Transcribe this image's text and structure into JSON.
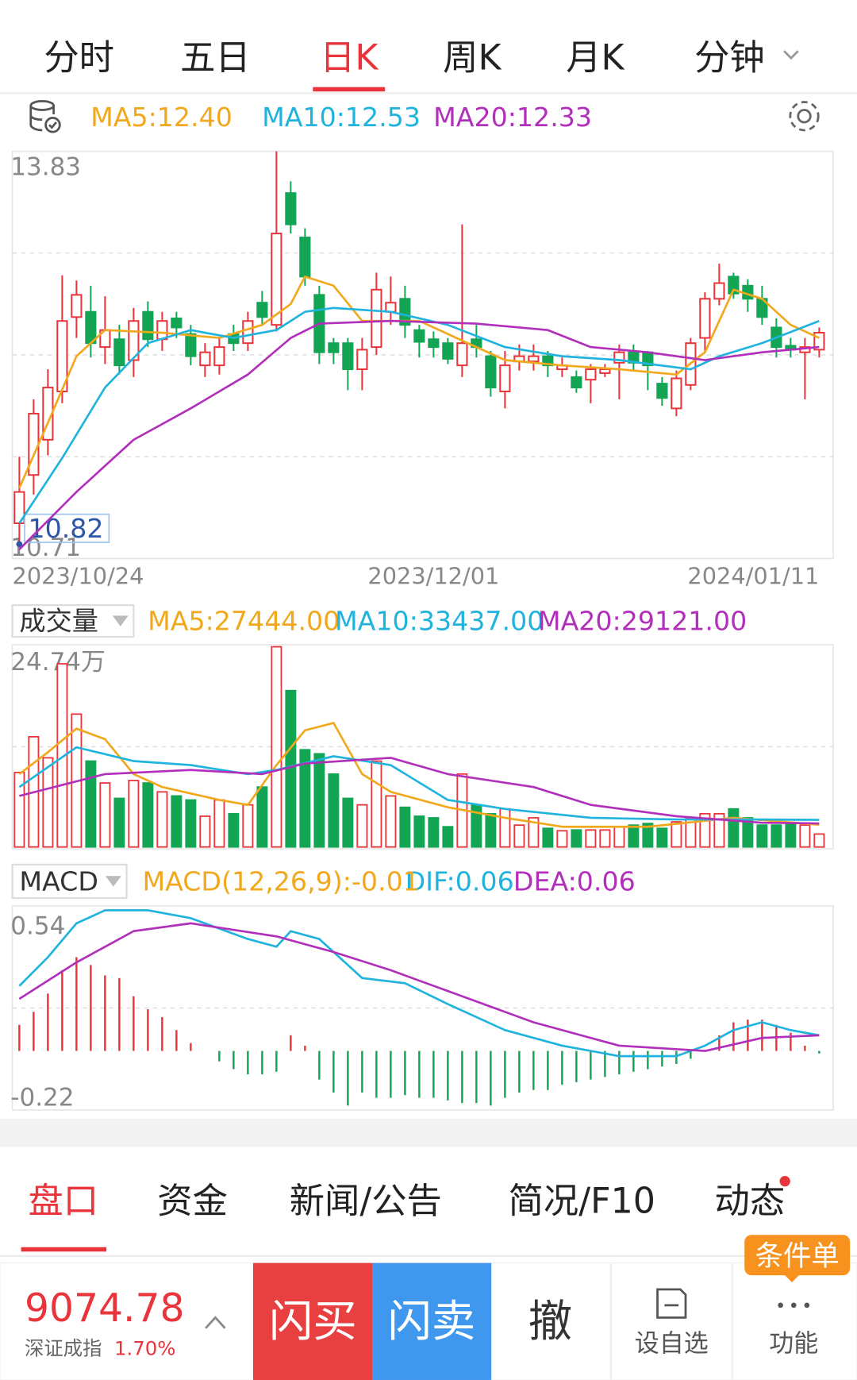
{
  "tabs": {
    "items": [
      "分时",
      "五日",
      "日K",
      "周K",
      "月K",
      "分钟"
    ],
    "active": 2
  },
  "chart_data": [
    {
      "type": "candlestick",
      "up_color": "#e8343a",
      "down_color": "#13a553",
      "open": [
        10.98,
        11.35,
        11.62,
        11.99,
        12.56,
        12.6,
        12.33,
        12.39,
        12.23,
        12.6,
        12.39,
        12.55,
        12.43,
        12.19,
        12.19,
        12.43,
        12.36,
        12.67,
        12.5,
        13.51,
        13.17,
        12.73,
        12.36,
        12.36,
        12.16,
        12.33,
        12.6,
        12.7,
        12.46,
        12.39,
        12.36,
        12.19,
        12.39,
        12.26,
        11.99,
        12.22,
        12.22,
        12.26,
        12.16,
        12.1,
        12.08,
        12.13,
        12.21,
        12.29,
        12.29,
        12.05,
        11.86,
        12.04,
        12.4,
        12.7,
        12.87,
        12.8,
        12.7,
        12.48,
        12.34,
        12.29,
        12.31
      ],
      "high": [
        11.49,
        11.93,
        12.16,
        12.88,
        12.84,
        12.8,
        12.72,
        12.5,
        12.63,
        12.68,
        12.6,
        12.6,
        12.5,
        12.36,
        12.4,
        12.5,
        12.6,
        12.76,
        13.83,
        13.6,
        13.24,
        12.8,
        12.4,
        12.4,
        12.4,
        12.9,
        12.87,
        12.8,
        12.5,
        12.45,
        12.4,
        13.27,
        12.5,
        12.3,
        12.3,
        12.35,
        12.35,
        12.3,
        12.25,
        12.15,
        12.2,
        12.2,
        12.35,
        12.35,
        12.3,
        12.1,
        12.15,
        12.4,
        12.75,
        12.97,
        12.9,
        12.85,
        12.8,
        12.55,
        12.4,
        12.4,
        12.48
      ],
      "low": [
        10.82,
        11.2,
        11.5,
        11.9,
        12.4,
        12.25,
        12.2,
        12.12,
        12.1,
        12.33,
        12.3,
        12.4,
        12.19,
        12.1,
        12.12,
        12.3,
        12.3,
        12.5,
        12.45,
        13.2,
        12.8,
        12.2,
        12.2,
        12.0,
        12.0,
        12.27,
        12.5,
        12.4,
        12.25,
        12.25,
        12.2,
        12.1,
        12.25,
        11.95,
        11.86,
        12.15,
        12.15,
        12.1,
        12.1,
        11.98,
        11.9,
        12.1,
        11.93,
        12.15,
        12.0,
        11.88,
        11.8,
        12.0,
        12.3,
        12.65,
        12.7,
        12.6,
        12.5,
        12.25,
        12.25,
        11.93,
        12.25
      ],
      "close": [
        11.22,
        11.82,
        12.02,
        12.53,
        12.73,
        12.36,
        12.46,
        12.19,
        12.53,
        12.39,
        12.53,
        12.48,
        12.26,
        12.29,
        12.33,
        12.36,
        12.53,
        12.56,
        13.2,
        13.27,
        12.87,
        12.29,
        12.29,
        12.16,
        12.31,
        12.77,
        12.67,
        12.5,
        12.37,
        12.33,
        12.24,
        12.36,
        12.33,
        12.02,
        12.19,
        12.26,
        12.26,
        12.19,
        12.19,
        12.02,
        12.16,
        12.16,
        12.29,
        12.21,
        12.19,
        11.94,
        12.09,
        12.36,
        12.7,
        12.82,
        12.74,
        12.7,
        12.56,
        12.33,
        12.31,
        12.33,
        12.44
      ],
      "xlim": [
        0,
        56
      ],
      "xticks": [
        {
          "value": 0,
          "label": "2023/10/24"
        },
        {
          "value": 29,
          "label": "2023/12/01"
        },
        {
          "value": 56,
          "label": "2024/01/11"
        }
      ],
      "ylim": [
        10.71,
        13.83
      ],
      "yticks": [
        13.83,
        10.71
      ],
      "grid_divisions": 4,
      "min_marker": {
        "x": 0,
        "value": 10.82
      },
      "series": [
        {
          "name": "MA5:12.40",
          "color": "#f2a81d",
          "x": [
            0,
            2,
            4,
            6,
            10,
            14,
            17,
            19,
            20,
            22,
            24,
            26,
            28,
            32,
            34,
            38,
            42,
            46,
            48,
            50,
            52,
            54,
            56
          ],
          "values": [
            11.25,
            11.75,
            12.26,
            12.46,
            12.44,
            12.4,
            12.5,
            12.66,
            12.87,
            12.8,
            12.53,
            12.53,
            12.53,
            12.33,
            12.23,
            12.19,
            12.16,
            12.12,
            12.29,
            12.77,
            12.7,
            12.5,
            12.4
          ]
        },
        {
          "name": "MA10:12.53",
          "color": "#1fb3dd",
          "x": [
            0,
            3,
            6,
            9,
            12,
            15,
            18,
            20,
            22,
            26,
            30,
            34,
            38,
            42,
            47,
            49,
            52,
            56
          ],
          "values": [
            10.98,
            11.48,
            12.02,
            12.36,
            12.46,
            12.4,
            12.46,
            12.6,
            12.63,
            12.6,
            12.5,
            12.33,
            12.26,
            12.23,
            12.16,
            12.26,
            12.36,
            12.53
          ]
        },
        {
          "name": "MA20:12.33",
          "color": "#b12fbb",
          "x": [
            0,
            4,
            8,
            12,
            16,
            19,
            21,
            26,
            32,
            37,
            40,
            44,
            48,
            52,
            56
          ],
          "values": [
            10.78,
            11.22,
            11.62,
            11.86,
            12.12,
            12.4,
            12.51,
            12.53,
            12.51,
            12.46,
            12.33,
            12.29,
            12.23,
            12.29,
            12.33
          ]
        }
      ]
    },
    {
      "type": "bar",
      "indicator": "成交量",
      "values": [
        92000,
        136000,
        110000,
        226000,
        164000,
        106000,
        79000,
        60000,
        82000,
        79000,
        68000,
        63000,
        58000,
        38000,
        58000,
        41000,
        52000,
        74000,
        247000,
        193000,
        120000,
        115000,
        90000,
        60000,
        52000,
        106000,
        63000,
        49000,
        38000,
        36000,
        25000,
        90000,
        52000,
        41000,
        47000,
        27000,
        36000,
        23000,
        20000,
        21000,
        21000,
        21000,
        25000,
        27000,
        29000,
        23000,
        31000,
        36000,
        41000,
        41000,
        47000,
        36000,
        27000,
        27000,
        30000,
        27000,
        16000
      ],
      "ylim": [
        0,
        247400
      ],
      "yticks": [
        {
          "value": 247400,
          "label": "24.74万"
        }
      ],
      "grid_divisions": 2,
      "series": [
        {
          "name": "MA5:27444.00",
          "color": "#f2a81d",
          "x": [
            0,
            2,
            4,
            6,
            8,
            10,
            14,
            16,
            18,
            20,
            22,
            24,
            26,
            30,
            34,
            38,
            44,
            50,
            56
          ],
          "values": [
            90000,
            117000,
            146000,
            133000,
            90000,
            74000,
            58000,
            52000,
            101000,
            144000,
            153000,
            90000,
            68000,
            49000,
            36000,
            25000,
            25000,
            36000,
            27444
          ]
        },
        {
          "name": "MA10:33437.00",
          "color": "#1fb3dd",
          "x": [
            0,
            4,
            8,
            12,
            16,
            18,
            22,
            26,
            30,
            34,
            40,
            46,
            52,
            56
          ],
          "values": [
            74000,
            123000,
            106000,
            101000,
            90000,
            95000,
            112000,
            101000,
            58000,
            47000,
            36000,
            34000,
            34000,
            33437
          ]
        },
        {
          "name": "MA20:29121.00",
          "color": "#b12fbb",
          "x": [
            0,
            6,
            12,
            17,
            20,
            26,
            30,
            36,
            40,
            46,
            52,
            56
          ],
          "values": [
            63000,
            90000,
            95000,
            90000,
            103000,
            110000,
            90000,
            74000,
            52000,
            38000,
            30000,
            29121
          ]
        }
      ]
    },
    {
      "type": "macd",
      "indicator": "MACD",
      "label": {
        "text": "MACD(12,26,9):-0.01",
        "color": "#f2a81d"
      },
      "histogram": [
        0.1,
        0.15,
        0.22,
        0.31,
        0.36,
        0.33,
        0.29,
        0.28,
        0.21,
        0.16,
        0.13,
        0.08,
        0.03,
        0,
        -0.04,
        -0.07,
        -0.09,
        -0.09,
        -0.08,
        0.06,
        0.02,
        -0.11,
        -0.16,
        -0.21,
        -0.16,
        -0.18,
        -0.18,
        -0.17,
        -0.18,
        -0.18,
        -0.19,
        -0.2,
        -0.2,
        -0.21,
        -0.18,
        -0.16,
        -0.15,
        -0.15,
        -0.13,
        -0.12,
        -0.11,
        -0.1,
        -0.09,
        -0.08,
        -0.07,
        -0.06,
        -0.05,
        -0.03,
        0,
        0.06,
        0.11,
        0.12,
        0.12,
        0.1,
        0.07,
        0.02,
        -0.01
      ],
      "ylim": [
        -0.22,
        0.54
      ],
      "yticks": [
        0.54,
        -0.22
      ],
      "grid_divisions": 2,
      "series": [
        {
          "name": "DIF:0.06",
          "color": "#1fb3dd",
          "x": [
            0,
            2,
            4,
            6,
            9,
            12,
            16,
            18,
            19,
            21,
            24,
            27,
            30,
            34,
            38,
            42,
            46,
            48,
            50,
            52,
            54,
            56
          ],
          "values": [
            0.25,
            0.36,
            0.49,
            0.54,
            0.54,
            0.51,
            0.43,
            0.4,
            0.46,
            0.43,
            0.28,
            0.26,
            0.18,
            0.08,
            0.02,
            -0.02,
            -0.02,
            0.02,
            0.08,
            0.11,
            0.08,
            0.06
          ]
        },
        {
          "name": "DEA:0.06",
          "color": "#b12fbb",
          "x": [
            0,
            4,
            8,
            12,
            18,
            22,
            26,
            30,
            36,
            42,
            48,
            52,
            56
          ],
          "values": [
            0.2,
            0.34,
            0.46,
            0.49,
            0.44,
            0.38,
            0.31,
            0.23,
            0.11,
            0.02,
            0,
            0.05,
            0.06
          ]
        }
      ]
    }
  ],
  "bottom_tabs": {
    "items": [
      "盘口",
      "资金",
      "新闻/公告",
      "简况/F10",
      "动态"
    ],
    "active": 0
  },
  "bottom_bar": {
    "index_value": "9074.78",
    "index_name": "深证成指",
    "index_change": "1.70%",
    "buy": "闪买",
    "sell": "闪卖",
    "cancel": "撤",
    "watchlist": "设自选",
    "functions": "功能",
    "badge": "条件单"
  }
}
